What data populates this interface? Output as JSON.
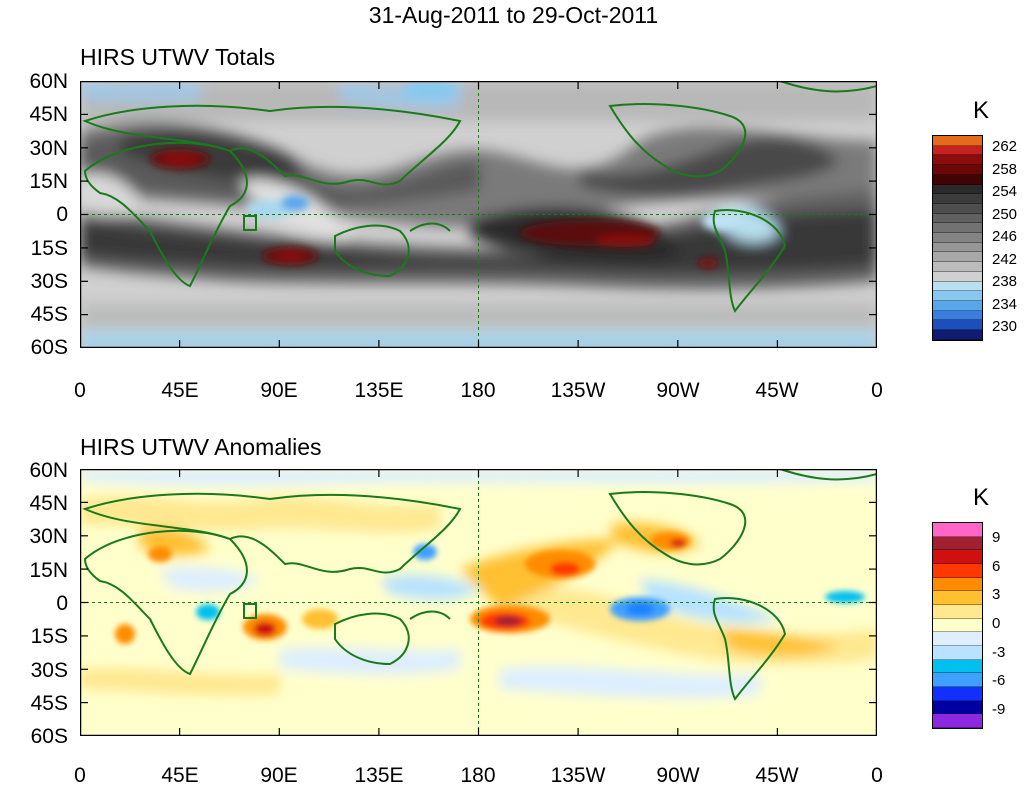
{
  "title": "31-Aug-2011 to 29-Oct-2011",
  "lat_labels": [
    "60N",
    "45N",
    "30N",
    "15N",
    "0",
    "15S",
    "30S",
    "45S",
    "60S"
  ],
  "lon_labels": [
    "0",
    "45E",
    "90E",
    "135E",
    "180",
    "135W",
    "90W",
    "45W",
    "0"
  ],
  "panels": [
    {
      "title": "HIRS UTWV Totals",
      "units": "K",
      "colorbar_labels": [
        "262",
        "258",
        "254",
        "250",
        "246",
        "242",
        "238",
        "234",
        "230"
      ],
      "colorbar_colors": [
        "#e66a1c",
        "#c62020",
        "#8a0c0c",
        "#6a0808",
        "#400404",
        "#2a2a2a",
        "#3c3c3c",
        "#4e4e4e",
        "#606060",
        "#727272",
        "#848484",
        "#969696",
        "#a8a8a8",
        "#bcbcbc",
        "#d0d0d0",
        "#b8e0f0",
        "#88c8ee",
        "#5aa6ea",
        "#3a7ee0",
        "#1e4ebc",
        "#101c70"
      ]
    },
    {
      "title": "HIRS UTWV Anomalies",
      "units": "K",
      "colorbar_labels": [
        "9",
        "6",
        "3",
        "0",
        "-3",
        "-6",
        "-9"
      ],
      "colorbar_colors": [
        "#ff66c8",
        "#a02030",
        "#d01010",
        "#ff3800",
        "#ff8c00",
        "#ffc030",
        "#ffe890",
        "#ffffcc",
        "#ddeeff",
        "#b8e2ff",
        "#00c0f0",
        "#40a0ff",
        "#1030ff",
        "#0000a0",
        "#8c28e0"
      ]
    }
  ]
}
